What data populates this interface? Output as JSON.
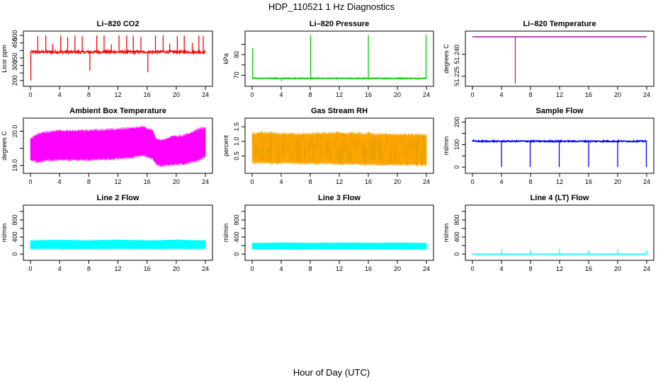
{
  "figure": {
    "title": "HDP_110521  1 Hz Diagnostics",
    "xlabel": "Hour of Day (UTC)"
  },
  "chart_data": [
    {
      "type": "line",
      "title": "Li–820 CO2",
      "ylabel": "Licor ppm",
      "color": "#ff0000",
      "x_ticks": [
        0,
        4,
        8,
        12,
        16,
        20,
        24
      ],
      "xlim": [
        0,
        24
      ],
      "y_ticks": [
        200,
        250,
        300,
        350,
        400,
        450,
        500
      ],
      "y_tick_labels": [
        "200",
        "",
        "300",
        "350",
        "",
        "450",
        "500"
      ],
      "ylim": [
        180,
        510
      ],
      "baseline": 390,
      "noise": 8,
      "spikes": [
        {
          "x": 0.05,
          "y": 200
        },
        {
          "x": 1.0,
          "y": 495
        },
        {
          "x": 2.1,
          "y": 500
        },
        {
          "x": 3.05,
          "y": 445
        },
        {
          "x": 4.15,
          "y": 500
        },
        {
          "x": 5.1,
          "y": 490
        },
        {
          "x": 6.1,
          "y": 500
        },
        {
          "x": 7.1,
          "y": 495
        },
        {
          "x": 8.15,
          "y": 265
        },
        {
          "x": 9.1,
          "y": 500
        },
        {
          "x": 10.1,
          "y": 500
        },
        {
          "x": 11.1,
          "y": 440
        },
        {
          "x": 12.15,
          "y": 500
        },
        {
          "x": 13.2,
          "y": 500
        },
        {
          "x": 14.1,
          "y": 500
        },
        {
          "x": 15.15,
          "y": 490
        },
        {
          "x": 16.1,
          "y": 255
        },
        {
          "x": 17.15,
          "y": 500
        },
        {
          "x": 18.2,
          "y": 500
        },
        {
          "x": 19.1,
          "y": 445
        },
        {
          "x": 20.15,
          "y": 495
        },
        {
          "x": 21.1,
          "y": 500
        },
        {
          "x": 22.2,
          "y": 450
        },
        {
          "x": 23.1,
          "y": 500
        },
        {
          "x": 23.7,
          "y": 495
        }
      ]
    },
    {
      "type": "line",
      "title": "Li–820 Pressure",
      "ylabel": "kPa",
      "color": "#00cc00",
      "x_ticks": [
        0,
        4,
        8,
        12,
        16,
        20,
        24
      ],
      "xlim": [
        0,
        24
      ],
      "y_ticks": [
        70,
        75,
        80,
        85
      ],
      "y_tick_labels": [
        "70",
        "",
        "80",
        ""
      ],
      "ylim": [
        66,
        90
      ],
      "baseline": 68.5,
      "noise": 0.2,
      "spikes": [
        {
          "x": 0.05,
          "y": 83
        },
        {
          "x": 4.0,
          "y": 67.2
        },
        {
          "x": 8.05,
          "y": 89.5
        },
        {
          "x": 16.0,
          "y": 89.5
        },
        {
          "x": 23.95,
          "y": 89.5
        }
      ]
    },
    {
      "type": "line",
      "title": "Li–820 Temperature",
      "ylabel": "degrees C",
      "color": "#aa22aa",
      "x_ticks": [
        0,
        4,
        8,
        12,
        16,
        20,
        24
      ],
      "xlim": [
        0,
        24
      ],
      "y_ticks": [
        51.225,
        51.24
      ],
      "y_tick_labels": [
        "51.225",
        "51.240"
      ],
      "ylim": [
        51.22,
        51.254
      ],
      "baseline": 51.252,
      "noise": 0,
      "spikes": [
        {
          "x": 5.9,
          "y": 51.22
        }
      ]
    },
    {
      "type": "band",
      "title": "Ambient Box Temperature",
      "ylabel": "degrees C",
      "color": "#ff00ff",
      "x_ticks": [
        0,
        4,
        8,
        12,
        16,
        20,
        24
      ],
      "xlim": [
        0,
        24
      ],
      "y_ticks": [
        19.0,
        19.5,
        20.0
      ],
      "y_tick_labels": [
        "19.0",
        "",
        "20.0"
      ],
      "ylim": [
        18.85,
        20.3
      ],
      "upper": [
        [
          0,
          19.82
        ],
        [
          1,
          19.95
        ],
        [
          2,
          20.01
        ],
        [
          4,
          20.05
        ],
        [
          8,
          20.06
        ],
        [
          12,
          20.1
        ],
        [
          14,
          20.14
        ],
        [
          15.5,
          20.18
        ],
        [
          16.8,
          20.05
        ],
        [
          17.2,
          19.82
        ],
        [
          18,
          19.78
        ],
        [
          19.5,
          19.88
        ],
        [
          21,
          19.92
        ],
        [
          23,
          20.1
        ],
        [
          24,
          20.17
        ]
      ],
      "lower": [
        [
          0,
          19.12
        ],
        [
          1,
          19.06
        ],
        [
          2,
          19.1
        ],
        [
          4,
          19.11
        ],
        [
          8,
          19.12
        ],
        [
          12,
          19.15
        ],
        [
          14,
          19.2
        ],
        [
          15.5,
          19.25
        ],
        [
          16.8,
          19.15
        ],
        [
          17.2,
          19.0
        ],
        [
          18,
          18.95
        ],
        [
          19.5,
          18.98
        ],
        [
          21,
          19.0
        ],
        [
          23,
          19.1
        ],
        [
          24,
          19.22
        ]
      ]
    },
    {
      "type": "band",
      "title": "Gas Stream RH",
      "ylabel": "percent",
      "color": "#ffa500",
      "color2": "#888800",
      "x_ticks": [
        0,
        4,
        8,
        12,
        16,
        20,
        24
      ],
      "xlim": [
        0,
        24
      ],
      "y_ticks": [
        0.5,
        1.0,
        1.5
      ],
      "y_tick_labels": [
        "0.5",
        "1.0",
        "1.5"
      ],
      "ylim": [
        0.0,
        1.7
      ],
      "upper": [
        [
          0,
          1.32
        ],
        [
          2,
          1.35
        ],
        [
          6,
          1.3
        ],
        [
          12,
          1.35
        ],
        [
          18,
          1.3
        ],
        [
          24,
          1.28
        ]
      ],
      "lower": [
        [
          0,
          0.22
        ],
        [
          2,
          0.2
        ],
        [
          6,
          0.19
        ],
        [
          12,
          0.18
        ],
        [
          18,
          0.15
        ],
        [
          24,
          0.14
        ]
      ]
    },
    {
      "type": "line",
      "title": "Sample Flow",
      "ylabel": "ml/min",
      "color": "#0000ff",
      "x_ticks": [
        0,
        4,
        8,
        12,
        16,
        20,
        24
      ],
      "xlim": [
        0,
        24
      ],
      "y_ticks": [
        0,
        50,
        100,
        150,
        200
      ],
      "y_tick_labels": [
        "0",
        "",
        "100",
        "",
        "200"
      ],
      "ylim": [
        -15,
        205
      ],
      "baseline": 115,
      "noise": 3,
      "spikes": [
        {
          "x": 0.1,
          "y": 122
        },
        {
          "x": 4.0,
          "y": 0
        },
        {
          "x": 7.95,
          "y": 0
        },
        {
          "x": 11.95,
          "y": 0
        },
        {
          "x": 16.0,
          "y": 0
        },
        {
          "x": 20.0,
          "y": 0
        },
        {
          "x": 23.95,
          "y": 0
        }
      ]
    },
    {
      "type": "band",
      "title": "Line 2 Flow",
      "ylabel": "ml/min",
      "color": "#00ffff",
      "x_ticks": [
        0,
        4,
        8,
        12,
        16,
        20,
        24
      ],
      "xlim": [
        0,
        24
      ],
      "y_ticks": [
        0,
        200,
        400,
        600,
        800,
        1000
      ],
      "y_tick_labels": [
        "0",
        "",
        "400",
        "",
        "800",
        ""
      ],
      "ylim": [
        -80,
        1080
      ],
      "upper": [
        [
          0,
          330
        ],
        [
          4,
          345
        ],
        [
          8,
          330
        ],
        [
          12,
          345
        ],
        [
          16,
          330
        ],
        [
          20,
          345
        ],
        [
          24,
          330
        ]
      ],
      "lower": [
        [
          0,
          110
        ],
        [
          4,
          110
        ],
        [
          8,
          110
        ],
        [
          12,
          110
        ],
        [
          16,
          110
        ],
        [
          20,
          110
        ],
        [
          24,
          110
        ]
      ]
    },
    {
      "type": "band",
      "title": "Line 3 Flow",
      "ylabel": "ml/min",
      "color": "#00ffff",
      "x_ticks": [
        0,
        4,
        8,
        12,
        16,
        20,
        24
      ],
      "xlim": [
        0,
        24
      ],
      "y_ticks": [
        0,
        200,
        400,
        600,
        800,
        1000
      ],
      "y_tick_labels": [
        "0",
        "",
        "400",
        "",
        "800",
        ""
      ],
      "ylim": [
        -80,
        1080
      ],
      "upper": [
        [
          0,
          270
        ],
        [
          4,
          275
        ],
        [
          8,
          270
        ],
        [
          12,
          275
        ],
        [
          16,
          270
        ],
        [
          20,
          275
        ],
        [
          24,
          270
        ]
      ],
      "lower": [
        [
          0,
          100
        ],
        [
          4,
          100
        ],
        [
          8,
          100
        ],
        [
          12,
          100
        ],
        [
          16,
          100
        ],
        [
          20,
          100
        ],
        [
          24,
          100
        ]
      ]
    },
    {
      "type": "line",
      "title": "Line 4 (LT) Flow",
      "ylabel": "ml/min",
      "color": "#00ffff",
      "x_ticks": [
        0,
        4,
        8,
        12,
        16,
        20,
        24
      ],
      "xlim": [
        0,
        24
      ],
      "y_ticks": [
        0,
        200,
        400,
        600,
        800,
        1000
      ],
      "y_tick_labels": [
        "0",
        "",
        "400",
        "",
        "800",
        ""
      ],
      "ylim": [
        -80,
        1080
      ],
      "baseline": 0,
      "noise": 0,
      "spikes": [
        {
          "x": 4.0,
          "y": 120
        },
        {
          "x": 8.0,
          "y": 90
        },
        {
          "x": 12.0,
          "y": 120
        },
        {
          "x": 16.0,
          "y": 80
        },
        {
          "x": 20.0,
          "y": 120
        },
        {
          "x": 24.0,
          "y": 90
        }
      ]
    }
  ]
}
